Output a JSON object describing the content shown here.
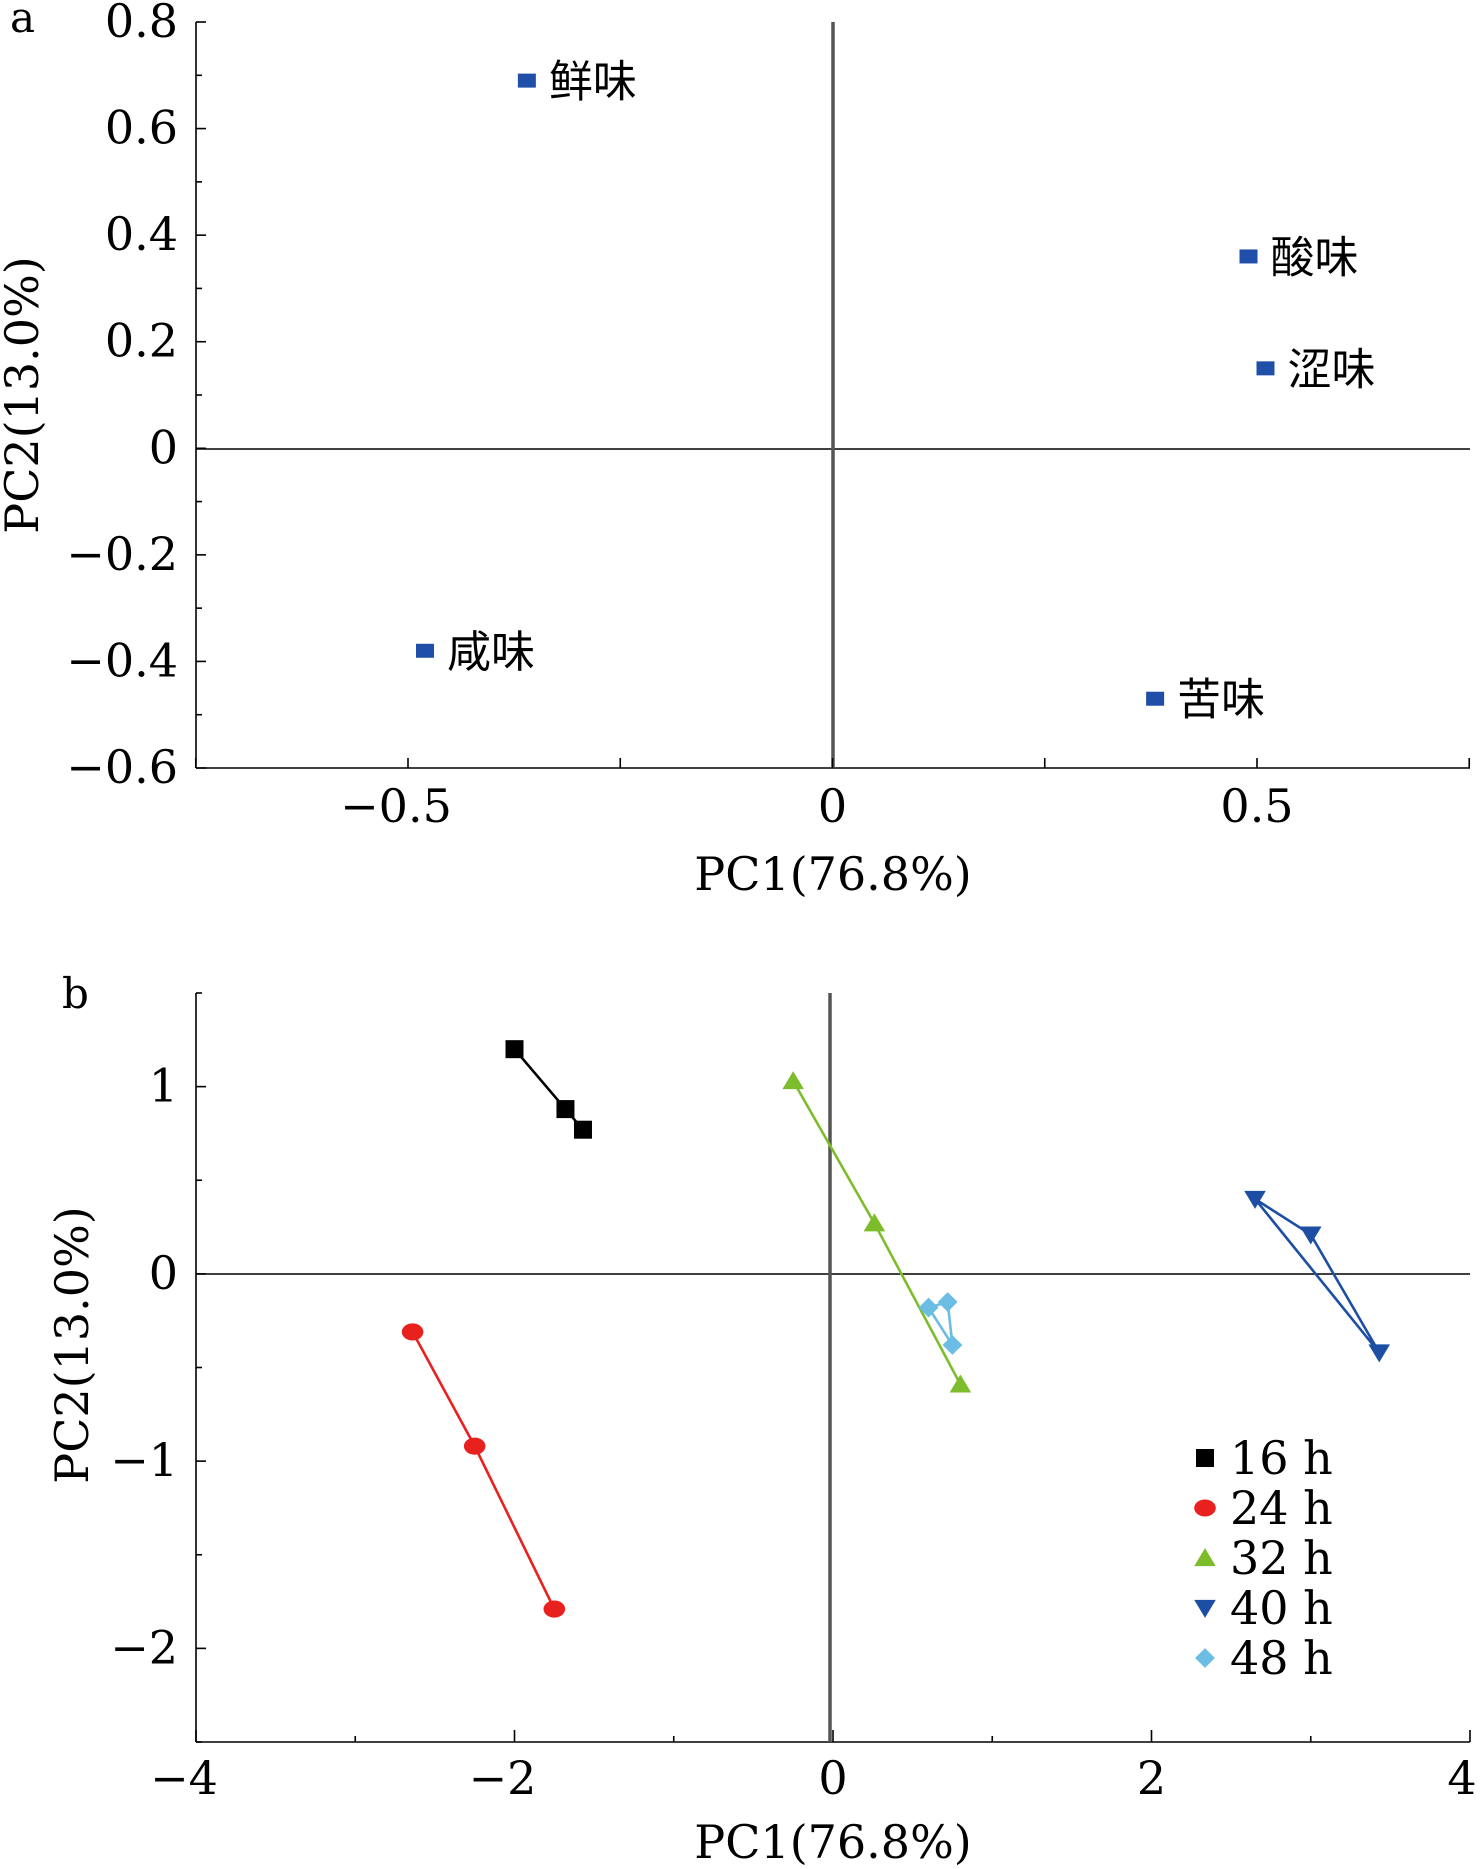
{
  "chart_data": [
    {
      "panel": "a",
      "type": "scatter",
      "xlabel": "PC1(76.8%)",
      "ylabel": "PC2(13.0%)",
      "xlim": [
        -0.75,
        0.75
      ],
      "ylim": [
        -0.6,
        0.8
      ],
      "xticks": [
        -0.5,
        0,
        0.5
      ],
      "yticks": [
        0.8,
        0.6,
        0.4,
        0.2,
        0,
        -0.2,
        -0.4,
        -0.6
      ],
      "xtick_labels": [
        "−0.5",
        "0",
        "0.5"
      ],
      "ytick_labels": [
        "0.8",
        "0.6",
        "0.4",
        "0.2",
        "0",
        "−0.2",
        "−0.4",
        "−0.6"
      ],
      "marker_color": "#1f4fa8",
      "points": [
        {
          "label": "鲜味",
          "x": -0.36,
          "y": 0.69
        },
        {
          "label": "酸味",
          "x": 0.49,
          "y": 0.36
        },
        {
          "label": "涩味",
          "x": 0.51,
          "y": 0.15
        },
        {
          "label": "咸味",
          "x": -0.48,
          "y": -0.38
        },
        {
          "label": "苦味",
          "x": 0.38,
          "y": -0.47
        }
      ]
    },
    {
      "panel": "b",
      "type": "line",
      "xlabel": "PC1(76.8%)",
      "ylabel": "PC2(13.0%)",
      "xlim": [
        -4,
        4
      ],
      "ylim": [
        -2.5,
        1.5
      ],
      "xticks": [
        -4,
        -2,
        0,
        2,
        4
      ],
      "yticks": [
        1,
        0,
        -1,
        -2
      ],
      "xtick_labels": [
        "−4",
        "−2",
        "0",
        "2",
        "4"
      ],
      "ytick_labels": [
        "1",
        "0",
        "−1",
        "−2"
      ],
      "legend": "bottom-right",
      "series": [
        {
          "name": "16 h",
          "marker": "square",
          "color": "#000000",
          "points": [
            [
              -2.0,
              1.2
            ],
            [
              -1.68,
              0.88
            ],
            [
              -1.57,
              0.77
            ]
          ]
        },
        {
          "name": "24 h",
          "marker": "circle",
          "color": "#e8201e",
          "points": [
            [
              -2.64,
              -0.31
            ],
            [
              -2.25,
              -0.92
            ],
            [
              -1.75,
              -1.79
            ]
          ]
        },
        {
          "name": "32 h",
          "marker": "triangle-up",
          "color": "#7dbd2c",
          "points": [
            [
              -0.25,
              1.03
            ],
            [
              0.26,
              0.27
            ],
            [
              0.8,
              -0.59
            ]
          ]
        },
        {
          "name": "40 h",
          "marker": "triangle-down",
          "color": "#1c4fa3",
          "points": [
            [
              2.65,
              0.4
            ],
            [
              3.0,
              0.21
            ],
            [
              3.43,
              -0.42
            ]
          ],
          "closed": true
        },
        {
          "name": "48 h",
          "marker": "diamond",
          "color": "#6bbde3",
          "points": [
            [
              0.6,
              -0.18
            ],
            [
              0.72,
              -0.15
            ],
            [
              0.75,
              -0.38
            ]
          ],
          "closed": true
        }
      ]
    }
  ]
}
